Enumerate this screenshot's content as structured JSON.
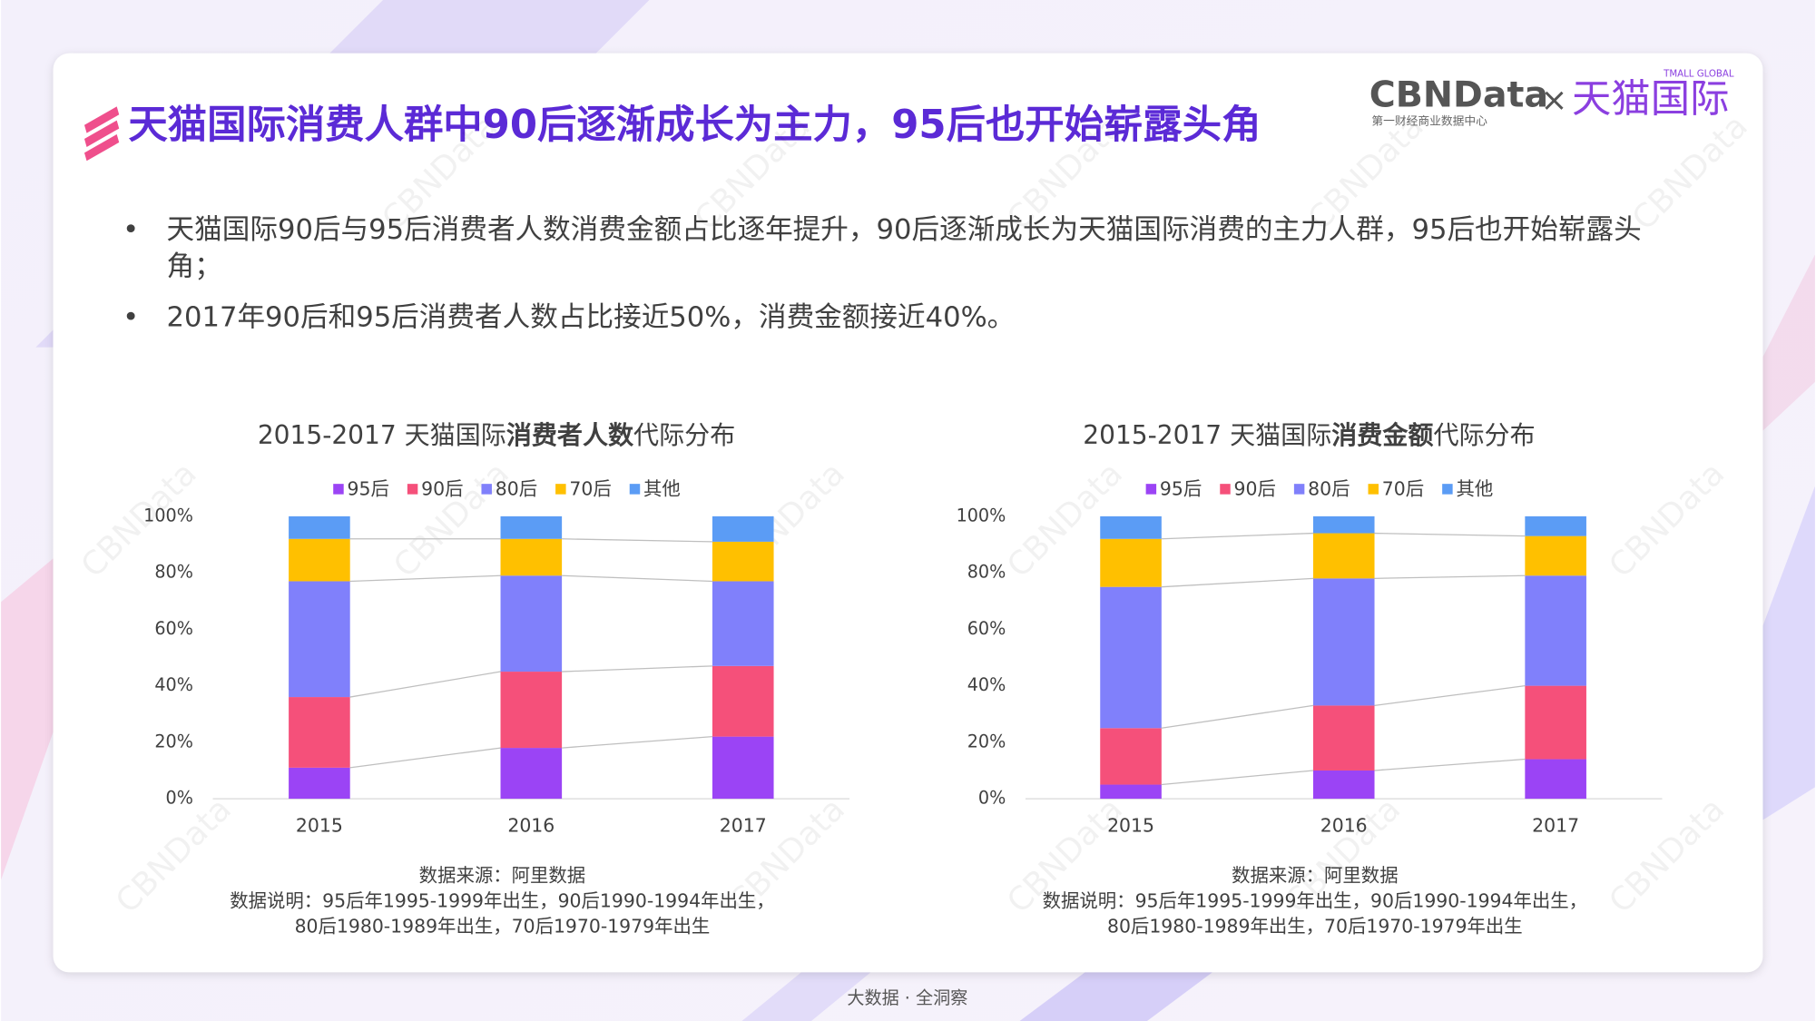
{
  "page_title": "天猫国际消费人群中90后逐渐成长为主力，95后也开始崭露头角",
  "logo": {
    "brand": "CBNData",
    "brand_sub": "第一财经商业数据中心",
    "times": "×",
    "partner": "天猫国际",
    "partner_sub": "TMALL GLOBAL"
  },
  "bullets": [
    "天猫国际90后与95后消费者人数消费金额占比逐年提升，90后逐渐成长为天猫国际消费的主力人群，95后也开始崭露头角；",
    "2017年90后和95后消费者人数占比接近50%，消费金额接近40%。"
  ],
  "watermark": "CBNData",
  "footer": "大数据 · 全洞察",
  "chart_data": [
    {
      "type": "stacked_bar",
      "title_parts": [
        "2015-2017 天猫国际",
        "消费者人数",
        "代际分布"
      ],
      "categories": [
        "2015",
        "2016",
        "2017"
      ],
      "series": [
        {
          "name": "95后",
          "color": "#9b44f5",
          "values": [
            11,
            18,
            22
          ]
        },
        {
          "name": "90后",
          "color": "#f5507a",
          "values": [
            25,
            27,
            25
          ]
        },
        {
          "name": "80后",
          "color": "#8080fb",
          "values": [
            41,
            34,
            30
          ]
        },
        {
          "name": "70后",
          "color": "#ffc000",
          "values": [
            15,
            13,
            14
          ]
        },
        {
          "name": "其他",
          "color": "#5b9cf5",
          "values": [
            8,
            8,
            9
          ]
        }
      ],
      "ylim": [
        0,
        100
      ],
      "yticks": [
        {
          "value": 0,
          "label": "0%"
        },
        {
          "value": 20,
          "label": "20%"
        },
        {
          "value": 40,
          "label": "40%"
        },
        {
          "value": 60,
          "label": "60%"
        },
        {
          "value": 80,
          "label": "80%"
        },
        {
          "value": 100,
          "label": "100%"
        }
      ],
      "grid": false,
      "legend": "top",
      "notes": [
        "数据来源：阿里数据",
        "数据说明：95后年1995-1999年出生，90后1990-1994年出生，",
        "80后1980-1989年出生，70后1970-1979年出生"
      ]
    },
    {
      "type": "stacked_bar",
      "title_parts": [
        "2015-2017 天猫国际",
        "消费金额",
        "代际分布"
      ],
      "categories": [
        "2015",
        "2016",
        "2017"
      ],
      "series": [
        {
          "name": "95后",
          "color": "#9b44f5",
          "values": [
            5,
            10,
            14
          ]
        },
        {
          "name": "90后",
          "color": "#f5507a",
          "values": [
            20,
            23,
            26
          ]
        },
        {
          "name": "80后",
          "color": "#8080fb",
          "values": [
            50,
            45,
            39
          ]
        },
        {
          "name": "70后",
          "color": "#ffc000",
          "values": [
            17,
            16,
            14
          ]
        },
        {
          "name": "其他",
          "color": "#5b9cf5",
          "values": [
            8,
            6,
            7
          ]
        }
      ],
      "ylim": [
        0,
        100
      ],
      "yticks": [
        {
          "value": 0,
          "label": "0%"
        },
        {
          "value": 20,
          "label": "20%"
        },
        {
          "value": 40,
          "label": "40%"
        },
        {
          "value": 60,
          "label": "60%"
        },
        {
          "value": 80,
          "label": "80%"
        },
        {
          "value": 100,
          "label": "100%"
        }
      ],
      "grid": false,
      "legend": "top",
      "notes": [
        "数据来源：阿里数据",
        "数据说明：95后年1995-1999年出生，90后1990-1994年出生，",
        "80后1980-1989年出生，70后1970-1979年出生"
      ]
    }
  ]
}
